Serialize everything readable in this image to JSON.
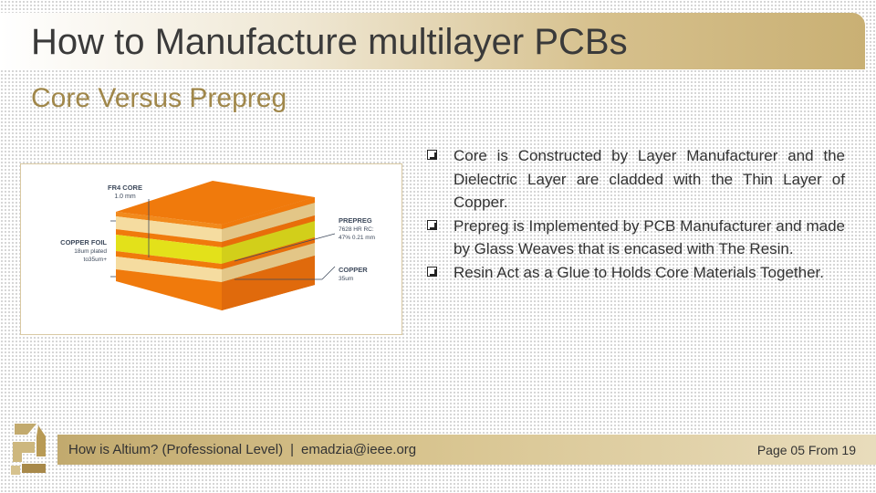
{
  "slide": {
    "title": "How to Manufacture multilayer PCBs",
    "subtitle": "Core Versus Prepreg"
  },
  "figure": {
    "labels": {
      "fr4_core": "FR4 CORE",
      "fr4_core_thickness": "1.0 mm",
      "copper_foil": "COPPER FOIL",
      "copper_foil_spec1": "18um plated",
      "copper_foil_spec2": "to35um+",
      "prepreg": "PREPREG",
      "prepreg_spec1": "7628 HR RC:",
      "prepreg_spec2": "47% 0.21 mm",
      "copper": "COPPER",
      "copper_thickness": "35um"
    },
    "colors": {
      "copper_orange": "#f07a0c",
      "prepreg_cream": "#f5dca0",
      "core_yellow": "#e3e11a"
    }
  },
  "bullets": [
    "Core is Constructed by Layer Manufacturer and the Dielectric Layer are cladded with the Thin Layer of Copper.",
    "Prepreg is Implemented by PCB Manufacturer and made by Glass Weaves that is encased with The Resin.",
    "Resin Act as a Glue to Holds Core Materials Together."
  ],
  "footer": {
    "course": "How is Altium? (Professional Level)",
    "separator": "|",
    "email": "emadzia@ieee.org",
    "page": "Page 05 From 19"
  },
  "theme": {
    "gold": "#c9b074",
    "subtitle_color": "#a0874a"
  }
}
